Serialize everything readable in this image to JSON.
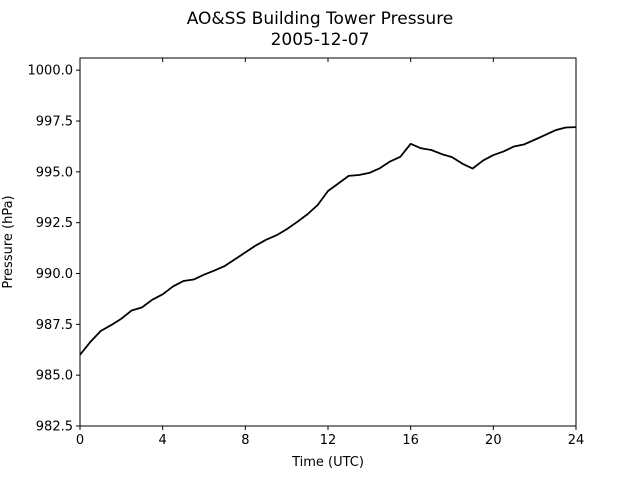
{
  "chart_data": {
    "type": "line",
    "title": "AO&SS Building Tower Pressure",
    "subtitle": "2005-12-07",
    "xlabel": "Time (UTC)",
    "ylabel": "Pressure (hPa)",
    "xlim": [
      0,
      24
    ],
    "ylim": [
      982.5,
      1000.6
    ],
    "x_ticks": [
      0,
      4,
      8,
      12,
      16,
      20,
      24
    ],
    "x_tick_labels": [
      "0",
      "4",
      "8",
      "12",
      "16",
      "20",
      "24"
    ],
    "y_ticks": [
      982.5,
      985.0,
      987.5,
      990.0,
      992.5,
      995.0,
      997.5,
      1000.0
    ],
    "y_tick_labels": [
      "982.5",
      "985.0",
      "987.5",
      "990.0",
      "992.5",
      "995.0",
      "997.5",
      "1000.0"
    ],
    "grid": false,
    "line_color": "#000000",
    "series": [
      {
        "x": [
          0,
          0.5,
          1,
          1.5,
          2,
          2.5,
          3,
          3.5,
          4,
          4.5,
          5,
          5.5,
          6,
          6.5,
          7,
          7.5,
          8,
          8.5,
          9,
          9.5,
          10,
          10.5,
          11,
          11.5,
          12,
          12.5,
          13,
          13.5,
          14,
          14.5,
          15,
          15.5,
          16,
          16.5,
          17,
          17.5,
          18,
          18.5,
          19,
          19.5,
          20,
          20.5,
          21,
          21.5,
          22,
          22.5,
          23,
          23.5,
          24
        ],
        "values": [
          986.0,
          986.6,
          987.1,
          987.4,
          987.7,
          988.1,
          988.3,
          988.7,
          989.0,
          989.4,
          989.7,
          989.8,
          990.0,
          990.2,
          990.4,
          990.7,
          991.0,
          991.3,
          991.6,
          991.8,
          992.1,
          992.5,
          992.9,
          993.4,
          994.1,
          994.5,
          994.9,
          994.9,
          995.0,
          995.2,
          995.5,
          995.7,
          996.3,
          996.1,
          996.0,
          995.8,
          995.7,
          995.4,
          995.2,
          995.6,
          995.9,
          996.1,
          996.3,
          996.4,
          996.6,
          996.8,
          997.0,
          997.1,
          997.2
        ]
      }
    ]
  }
}
